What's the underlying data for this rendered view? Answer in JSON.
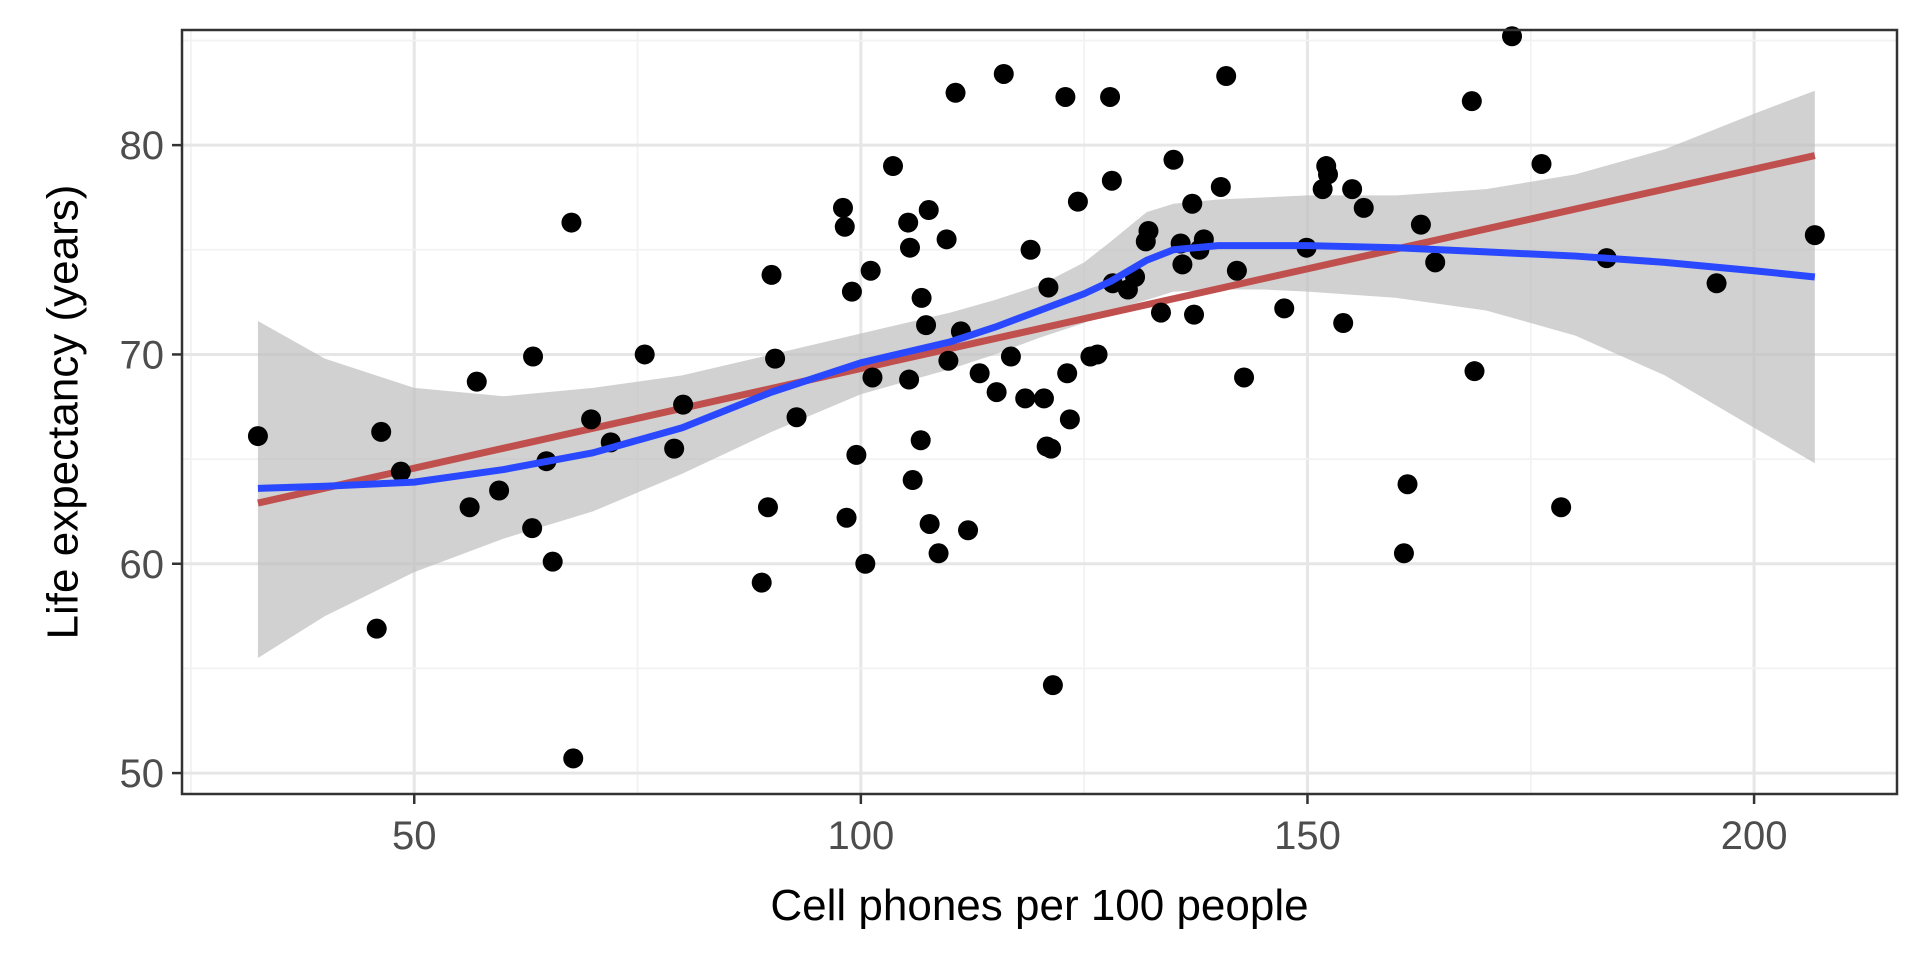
{
  "chart_data": {
    "type": "scatter",
    "title": "",
    "xlabel": "Cell phones per 100 people",
    "ylabel": "Life expectancy (years)",
    "xlim": [
      24,
      216
    ],
    "ylim": [
      49,
      85.5
    ],
    "x_ticks": [
      50,
      100,
      150,
      200
    ],
    "y_ticks": [
      50,
      60,
      70,
      80
    ],
    "x_tick_labels": [
      "50",
      "100",
      "150",
      "200"
    ],
    "y_tick_labels": [
      "50",
      "60",
      "70",
      "80"
    ],
    "grid": true,
    "legend": "none",
    "colors": {
      "points": "#000000",
      "linear_fit": "#c0504d",
      "smooth_fit": "#2a48ff",
      "confidence_band": "#bdbdbd",
      "grid_major": "#e6e6e6",
      "grid_minor": "#f2f2f2",
      "panel_border": "#333333"
    },
    "points": [
      [
        32.5,
        66.1
      ],
      [
        45.8,
        56.9
      ],
      [
        46.3,
        66.3
      ],
      [
        48.5,
        64.4
      ],
      [
        56.2,
        62.7
      ],
      [
        57.0,
        68.7
      ],
      [
        59.5,
        63.5
      ],
      [
        63.2,
        61.7
      ],
      [
        63.3,
        69.9
      ],
      [
        64.8,
        64.9
      ],
      [
        65.5,
        60.1
      ],
      [
        67.6,
        76.3
      ],
      [
        67.8,
        50.7
      ],
      [
        69.8,
        66.9
      ],
      [
        72.0,
        65.8
      ],
      [
        75.8,
        70.0
      ],
      [
        79.1,
        65.5
      ],
      [
        80.1,
        67.6
      ],
      [
        88.9,
        59.1
      ],
      [
        89.6,
        62.7
      ],
      [
        90.0,
        73.8
      ],
      [
        90.4,
        69.8
      ],
      [
        92.8,
        67.0
      ],
      [
        98.0,
        77.0
      ],
      [
        98.2,
        76.1
      ],
      [
        98.4,
        62.2
      ],
      [
        99.0,
        73.0
      ],
      [
        99.5,
        65.2
      ],
      [
        100.5,
        60.0
      ],
      [
        101.1,
        74.0
      ],
      [
        101.3,
        68.9
      ],
      [
        103.6,
        79.0
      ],
      [
        105.3,
        76.3
      ],
      [
        105.5,
        75.1
      ],
      [
        105.4,
        68.8
      ],
      [
        105.8,
        64.0
      ],
      [
        106.8,
        72.7
      ],
      [
        106.7,
        65.9
      ],
      [
        107.3,
        71.4
      ],
      [
        107.6,
        76.9
      ],
      [
        107.7,
        61.9
      ],
      [
        108.7,
        60.5
      ],
      [
        109.6,
        75.5
      ],
      [
        109.8,
        69.7
      ],
      [
        110.6,
        82.5
      ],
      [
        111.2,
        71.1
      ],
      [
        112.0,
        61.6
      ],
      [
        113.3,
        69.1
      ],
      [
        115.2,
        68.2
      ],
      [
        116.0,
        83.4
      ],
      [
        116.8,
        69.9
      ],
      [
        118.4,
        67.9
      ],
      [
        119.0,
        75.0
      ],
      [
        120.5,
        67.9
      ],
      [
        120.8,
        65.6
      ],
      [
        121.0,
        73.2
      ],
      [
        121.3,
        65.5
      ],
      [
        121.5,
        54.2
      ],
      [
        122.9,
        82.3
      ],
      [
        123.1,
        69.1
      ],
      [
        123.4,
        66.9
      ],
      [
        124.3,
        77.3
      ],
      [
        125.7,
        69.9
      ],
      [
        126.5,
        70.0
      ],
      [
        127.9,
        82.3
      ],
      [
        128.1,
        78.3
      ],
      [
        128.2,
        73.4
      ],
      [
        129.9,
        73.1
      ],
      [
        130.7,
        73.7
      ],
      [
        131.9,
        75.4
      ],
      [
        132.2,
        75.9
      ],
      [
        133.6,
        72.0
      ],
      [
        135.0,
        79.3
      ],
      [
        135.8,
        75.3
      ],
      [
        136.0,
        74.3
      ],
      [
        137.1,
        77.2
      ],
      [
        137.3,
        71.9
      ],
      [
        137.9,
        75.0
      ],
      [
        138.4,
        75.5
      ],
      [
        140.3,
        78.0
      ],
      [
        140.9,
        83.3
      ],
      [
        142.1,
        74.0
      ],
      [
        142.9,
        68.9
      ],
      [
        147.4,
        72.2
      ],
      [
        149.9,
        75.1
      ],
      [
        151.7,
        77.9
      ],
      [
        152.1,
        79.0
      ],
      [
        152.3,
        78.6
      ],
      [
        154.0,
        71.5
      ],
      [
        155.0,
        77.9
      ],
      [
        156.3,
        77.0
      ],
      [
        160.8,
        60.5
      ],
      [
        161.2,
        63.8
      ],
      [
        162.7,
        76.2
      ],
      [
        164.3,
        74.4
      ],
      [
        168.4,
        82.1
      ],
      [
        168.7,
        69.2
      ],
      [
        172.9,
        85.2
      ],
      [
        176.2,
        79.1
      ],
      [
        178.4,
        62.7
      ],
      [
        183.5,
        74.6
      ],
      [
        195.8,
        73.4
      ],
      [
        206.8,
        75.7
      ]
    ],
    "linear_fit": {
      "x": [
        32.5,
        206.8
      ],
      "y": [
        62.9,
        79.5
      ]
    },
    "smooth_fit": {
      "x": [
        32.5,
        40,
        50,
        60,
        70,
        80,
        90,
        100,
        110,
        115,
        120,
        125,
        128,
        132,
        135,
        140,
        145,
        150,
        160,
        170,
        180,
        190,
        200,
        206.8
      ],
      "y": [
        63.6,
        63.7,
        63.9,
        64.5,
        65.3,
        66.5,
        68.2,
        69.6,
        70.6,
        71.3,
        72.1,
        72.9,
        73.5,
        74.5,
        75.0,
        75.2,
        75.2,
        75.2,
        75.1,
        74.9,
        74.7,
        74.4,
        74.0,
        73.7
      ]
    },
    "confidence_band": {
      "x": [
        32.5,
        40,
        50,
        60,
        70,
        80,
        90,
        100,
        110,
        115,
        120,
        125,
        128,
        132,
        135,
        140,
        145,
        150,
        160,
        170,
        180,
        190,
        200,
        206.8
      ],
      "upper": [
        71.6,
        69.8,
        68.4,
        68.0,
        68.4,
        69.0,
        70.0,
        71.0,
        72.0,
        72.6,
        73.3,
        74.4,
        75.4,
        76.8,
        77.2,
        77.4,
        77.5,
        77.6,
        77.6,
        77.9,
        78.6,
        79.8,
        81.5,
        82.6
      ],
      "lower": [
        55.5,
        57.5,
        59.6,
        61.2,
        62.5,
        64.3,
        66.3,
        68.1,
        69.3,
        70.0,
        70.8,
        71.5,
        72.1,
        72.6,
        73.0,
        73.1,
        73.1,
        73.0,
        72.7,
        72.1,
        70.9,
        69.0,
        66.5,
        64.8
      ]
    }
  }
}
